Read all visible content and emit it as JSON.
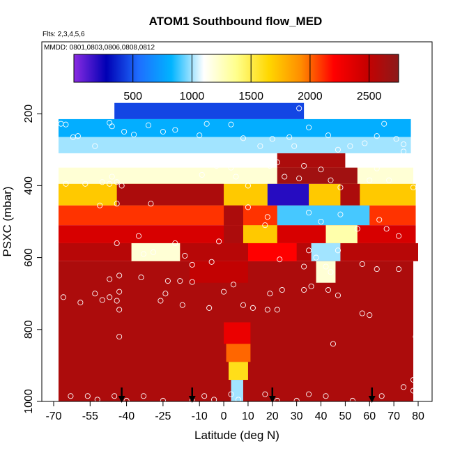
{
  "chart_data": {
    "type": "heatmap",
    "title": "ATOM1 Southbound flow_MED",
    "subtitle_flights": "Flts: 2,3,4,5,6",
    "subtitle_dates": "MMDD: 0801,0803,0806,0808,0812",
    "xlabel": "Latitude (deg N)",
    "ylabel": "PSXC (mbar)",
    "xlim": [
      -70,
      80
    ],
    "ylim": [
      1000,
      0
    ],
    "x_ticks": [
      -70,
      -55,
      -40,
      -25,
      -10,
      0,
      10,
      20,
      30,
      40,
      50,
      60,
      70,
      80
    ],
    "y_ticks": [
      200,
      400,
      600,
      800,
      1000
    ],
    "colorbar": {
      "range": [
        0,
        2750
      ],
      "ticks": [
        500,
        1000,
        1500,
        2000,
        2500
      ],
      "colors": [
        "#8a2be2",
        "#0000b4",
        "#1e6eff",
        "#00b4ff",
        "#ffffff",
        "#ffff8c",
        "#ffd700",
        "#ff8c00",
        "#ff0000",
        "#c80000",
        "#8b1a1a"
      ]
    },
    "arrows_latitude": [
      -42,
      -13,
      20,
      61
    ],
    "layers": [
      {
        "p_top": 170,
        "p_bot": 215,
        "x_from": -45,
        "x_to": 33,
        "value": 450
      },
      {
        "p_top": 215,
        "p_bot": 265,
        "x_from": -68,
        "x_to": 77,
        "value": 800
      },
      {
        "p_top": 265,
        "p_bot": 310,
        "x_from": -68,
        "x_to": 77,
        "value": 1000
      },
      {
        "p_top": 310,
        "p_bot": 350,
        "x_from": -68,
        "x_to": 78,
        "value": 1100
      },
      {
        "p_top": 350,
        "p_bot": 395,
        "x_from": -68,
        "x_to": 78,
        "value": 1200
      },
      {
        "p_top": 395,
        "p_bot": 455,
        "x_from": -68,
        "x_to": 79,
        "value": 1700
      },
      {
        "p_top": 455,
        "p_bot": 510,
        "x_from": -68,
        "x_to": 79,
        "value": 2100
      },
      {
        "p_top": 510,
        "p_bot": 560,
        "x_from": -68,
        "x_to": 79,
        "value": 2400
      },
      {
        "p_top": 560,
        "p_bot": 610,
        "x_from": -68,
        "x_to": 80,
        "value": 2550
      },
      {
        "p_top": 610,
        "p_bot": 1000,
        "x_from": -68,
        "x_to": 78,
        "value": 2600
      }
    ],
    "features": [
      {
        "p_top": 395,
        "p_bot": 455,
        "x_from": -44,
        "x_to": 0,
        "value": 2600
      },
      {
        "p_top": 310,
        "p_bot": 350,
        "x_from": 22,
        "x_to": 50,
        "value": 2600
      },
      {
        "p_top": 350,
        "p_bot": 395,
        "x_from": 22,
        "x_to": 55,
        "value": 2650
      },
      {
        "p_top": 395,
        "p_bot": 455,
        "x_from": 18,
        "x_to": 35,
        "value": 200
      },
      {
        "p_top": 395,
        "p_bot": 455,
        "x_from": 48,
        "x_to": 56,
        "value": 2600
      },
      {
        "p_top": 455,
        "p_bot": 510,
        "x_from": 0,
        "x_to": 8,
        "value": 2600
      },
      {
        "p_top": 455,
        "p_bot": 510,
        "x_from": 22,
        "x_to": 60,
        "value": 900
      },
      {
        "p_top": 510,
        "p_bot": 560,
        "x_from": 0,
        "x_to": 8,
        "value": 2600
      },
      {
        "p_top": 510,
        "p_bot": 560,
        "x_from": 8,
        "x_to": 22,
        "value": 1700
      },
      {
        "p_top": 510,
        "p_bot": 560,
        "x_from": 42,
        "x_to": 55,
        "value": 1300
      },
      {
        "p_top": 560,
        "p_bot": 610,
        "x_from": -38,
        "x_to": -18,
        "value": 1200
      },
      {
        "p_top": 560,
        "p_bot": 610,
        "x_from": 10,
        "x_to": 30,
        "value": 2200
      },
      {
        "p_top": 560,
        "p_bot": 610,
        "x_from": 36,
        "x_to": 48,
        "value": 1000
      },
      {
        "p_top": 610,
        "p_bot": 670,
        "x_from": 38,
        "x_to": 46,
        "value": 1200
      },
      {
        "p_top": 610,
        "p_bot": 670,
        "x_from": -14,
        "x_to": 10,
        "value": 2500
      },
      {
        "p_top": 780,
        "p_bot": 840,
        "x_from": 0,
        "x_to": 11,
        "value": 2300
      },
      {
        "p_top": 840,
        "p_bot": 890,
        "x_from": 1,
        "x_to": 11,
        "value": 2000
      },
      {
        "p_top": 890,
        "p_bot": 940,
        "x_from": 2,
        "x_to": 10,
        "value": 1600
      },
      {
        "p_top": 940,
        "p_bot": 1000,
        "x_from": 3,
        "x_to": 8,
        "value": 1000
      }
    ],
    "points": [
      [
        -67,
        228
      ],
      [
        -65,
        230
      ],
      [
        -62,
        265
      ],
      [
        -60,
        262
      ],
      [
        -53,
        290
      ],
      [
        -47,
        225
      ],
      [
        -46,
        235
      ],
      [
        -41,
        250
      ],
      [
        -37,
        258
      ],
      [
        -31,
        232
      ],
      [
        -25,
        250
      ],
      [
        -20,
        245
      ],
      [
        -10,
        260
      ],
      [
        -7,
        228
      ],
      [
        3,
        230
      ],
      [
        8,
        268
      ],
      [
        15,
        290
      ],
      [
        20,
        270
      ],
      [
        27,
        265
      ],
      [
        29,
        290
      ],
      [
        31,
        185
      ],
      [
        35,
        238
      ],
      [
        43,
        260
      ],
      [
        47,
        300
      ],
      [
        52,
        290
      ],
      [
        58,
        282
      ],
      [
        63,
        262
      ],
      [
        66,
        228
      ],
      [
        71,
        270
      ],
      [
        74,
        285
      ],
      [
        74,
        305
      ],
      [
        -65,
        395
      ],
      [
        -57,
        395
      ],
      [
        -50,
        390
      ],
      [
        -47,
        395
      ],
      [
        -46,
        375
      ],
      [
        -44,
        390
      ],
      [
        -42,
        400
      ],
      [
        -9,
        370
      ],
      [
        -3,
        345
      ],
      [
        3,
        350
      ],
      [
        5,
        375
      ],
      [
        10,
        400
      ],
      [
        17,
        330
      ],
      [
        19,
        345
      ],
      [
        22,
        335
      ],
      [
        25,
        375
      ],
      [
        31,
        380
      ],
      [
        33,
        345
      ],
      [
        40,
        355
      ],
      [
        44,
        385
      ],
      [
        48,
        405
      ],
      [
        60,
        385
      ],
      [
        63,
        352
      ],
      [
        68,
        385
      ],
      [
        78,
        405
      ],
      [
        -51,
        455
      ],
      [
        -44,
        450
      ],
      [
        -30,
        450
      ],
      [
        10,
        460
      ],
      [
        18,
        487
      ],
      [
        35,
        475
      ],
      [
        40,
        500
      ],
      [
        48,
        480
      ],
      [
        55,
        520
      ],
      [
        64,
        495
      ],
      [
        67,
        520
      ],
      [
        72,
        540
      ],
      [
        -44,
        560
      ],
      [
        -35,
        540
      ],
      [
        -20,
        560
      ],
      [
        -2,
        555
      ],
      [
        17,
        510
      ],
      [
        35,
        580
      ],
      [
        47,
        580
      ],
      [
        -33,
        590
      ],
      [
        -29,
        585
      ],
      [
        -16,
        595
      ],
      [
        -13,
        620
      ],
      [
        -5,
        612
      ],
      [
        23,
        605
      ],
      [
        33,
        625
      ],
      [
        38,
        600
      ],
      [
        42,
        625
      ],
      [
        44,
        640
      ],
      [
        57,
        618
      ],
      [
        63,
        632
      ],
      [
        72,
        632
      ],
      [
        -47,
        660
      ],
      [
        -43,
        650
      ],
      [
        -34,
        655
      ],
      [
        -23,
        665
      ],
      [
        -18,
        665
      ],
      [
        -13,
        668
      ],
      [
        0,
        695
      ],
      [
        4,
        675
      ],
      [
        19,
        700
      ],
      [
        24,
        690
      ],
      [
        33,
        690
      ],
      [
        36,
        680
      ],
      [
        43,
        690
      ],
      [
        47,
        705
      ],
      [
        -66,
        710
      ],
      [
        -59,
        725
      ],
      [
        -53,
        700
      ],
      [
        -50,
        718
      ],
      [
        -47,
        710
      ],
      [
        -44,
        720
      ],
      [
        -43,
        695
      ],
      [
        -43,
        745
      ],
      [
        -26,
        720
      ],
      [
        -24,
        700
      ],
      [
        -17,
        732
      ],
      [
        -6,
        740
      ],
      [
        8,
        732
      ],
      [
        12,
        740
      ],
      [
        18,
        745
      ],
      [
        22,
        745
      ],
      [
        57,
        755
      ],
      [
        60,
        760
      ],
      [
        -43,
        820
      ],
      [
        45,
        840
      ],
      [
        79,
        820
      ],
      [
        78,
        940
      ],
      [
        78,
        970
      ],
      [
        -63,
        985
      ],
      [
        -56,
        985
      ],
      [
        -52,
        995
      ],
      [
        -45,
        985
      ],
      [
        -40,
        998
      ],
      [
        -33,
        985
      ],
      [
        -25,
        998
      ],
      [
        -13,
        998
      ],
      [
        -8,
        985
      ],
      [
        -4,
        995
      ],
      [
        3,
        980
      ],
      [
        6,
        995
      ],
      [
        17,
        980
      ],
      [
        22,
        998
      ],
      [
        30,
        998
      ],
      [
        35,
        980
      ],
      [
        42,
        985
      ],
      [
        53,
        998
      ],
      [
        65,
        985
      ],
      [
        74,
        960
      ]
    ]
  }
}
